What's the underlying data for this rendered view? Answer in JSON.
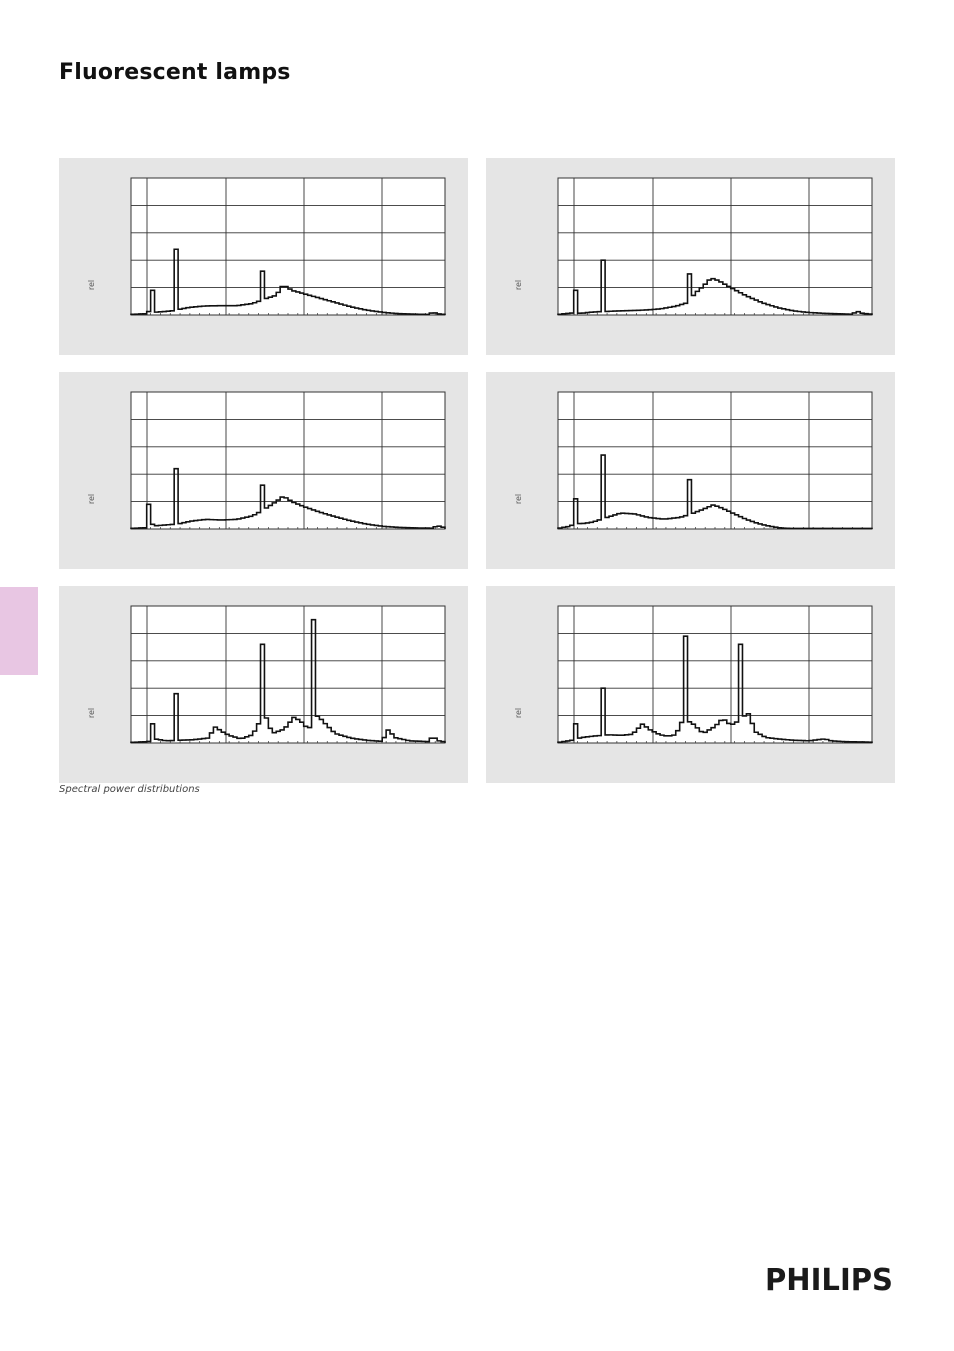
{
  "page": {
    "title": "Fluorescent lamps",
    "caption": "Spectral power distributions",
    "logo_text": "PHILIPS",
    "tab_color": "#e8c6e3",
    "panel_color": "#e5e5e5"
  },
  "chart_data": [
    {
      "type": "line",
      "title": "",
      "xlabel": "",
      "ylabel": "rel",
      "xlim": [
        380,
        780
      ],
      "ylim": [
        0,
        5
      ],
      "grid": true,
      "spikes": [
        [
          405,
          0.9
        ],
        [
          436,
          2.4
        ],
        [
          546,
          1.6
        ]
      ],
      "envelope": [
        [
          380,
          0.02
        ],
        [
          401,
          0.05
        ],
        [
          404,
          0.2
        ],
        [
          410,
          0.1
        ],
        [
          420,
          0.12
        ],
        [
          432,
          0.15
        ],
        [
          440,
          0.2
        ],
        [
          455,
          0.28
        ],
        [
          475,
          0.33
        ],
        [
          495,
          0.34
        ],
        [
          515,
          0.34
        ],
        [
          535,
          0.42
        ],
        [
          550,
          0.58
        ],
        [
          565,
          0.72
        ],
        [
          574,
          1.1
        ],
        [
          585,
          0.9
        ],
        [
          600,
          0.78
        ],
        [
          620,
          0.62
        ],
        [
          640,
          0.46
        ],
        [
          660,
          0.3
        ],
        [
          680,
          0.18
        ],
        [
          700,
          0.1
        ],
        [
          720,
          0.05
        ],
        [
          740,
          0.03
        ],
        [
          760,
          0.02
        ],
        [
          764,
          0.1
        ],
        [
          772,
          0.04
        ],
        [
          780,
          0.02
        ]
      ]
    },
    {
      "type": "line",
      "title": "",
      "xlabel": "",
      "ylabel": "rel",
      "xlim": [
        380,
        780
      ],
      "ylim": [
        0,
        5
      ],
      "grid": true,
      "spikes": [
        [
          404,
          0.9
        ],
        [
          436,
          2.0
        ],
        [
          546,
          1.5
        ]
      ],
      "envelope": [
        [
          380,
          0.02
        ],
        [
          400,
          0.08
        ],
        [
          410,
          0.06
        ],
        [
          420,
          0.1
        ],
        [
          432,
          0.12
        ],
        [
          450,
          0.14
        ],
        [
          470,
          0.16
        ],
        [
          490,
          0.18
        ],
        [
          510,
          0.22
        ],
        [
          530,
          0.32
        ],
        [
          545,
          0.45
        ],
        [
          555,
          0.8
        ],
        [
          565,
          1.05
        ],
        [
          575,
          1.35
        ],
        [
          585,
          1.25
        ],
        [
          600,
          1.0
        ],
        [
          620,
          0.7
        ],
        [
          640,
          0.45
        ],
        [
          660,
          0.27
        ],
        [
          680,
          0.15
        ],
        [
          700,
          0.09
        ],
        [
          720,
          0.06
        ],
        [
          740,
          0.04
        ],
        [
          756,
          0.03
        ],
        [
          760,
          0.15
        ],
        [
          768,
          0.06
        ],
        [
          780,
          0.03
        ]
      ]
    },
    {
      "type": "line",
      "title": "",
      "xlabel": "",
      "ylabel": "rel",
      "xlim": [
        380,
        780
      ],
      "ylim": [
        0,
        5
      ],
      "grid": true,
      "spikes": [
        [
          404,
          0.9
        ],
        [
          436,
          2.2
        ],
        [
          546,
          1.6
        ]
      ],
      "envelope": [
        [
          380,
          0.02
        ],
        [
          401,
          0.05
        ],
        [
          405,
          0.2
        ],
        [
          412,
          0.12
        ],
        [
          425,
          0.15
        ],
        [
          440,
          0.18
        ],
        [
          455,
          0.28
        ],
        [
          475,
          0.35
        ],
        [
          495,
          0.33
        ],
        [
          515,
          0.35
        ],
        [
          535,
          0.48
        ],
        [
          550,
          0.72
        ],
        [
          565,
          1.0
        ],
        [
          574,
          1.2
        ],
        [
          585,
          1.0
        ],
        [
          600,
          0.82
        ],
        [
          620,
          0.62
        ],
        [
          640,
          0.45
        ],
        [
          660,
          0.3
        ],
        [
          680,
          0.18
        ],
        [
          700,
          0.1
        ],
        [
          720,
          0.06
        ],
        [
          740,
          0.04
        ],
        [
          764,
          0.03
        ],
        [
          770,
          0.12
        ],
        [
          780,
          0.05
        ]
      ]
    },
    {
      "type": "line",
      "title": "",
      "xlabel": "",
      "ylabel": "rel",
      "xlim": [
        380,
        780
      ],
      "ylim": [
        0,
        5
      ],
      "grid": true,
      "spikes": [
        [
          404,
          1.1
        ],
        [
          436,
          2.7
        ],
        [
          546,
          1.8
        ]
      ],
      "envelope": [
        [
          380,
          0.02
        ],
        [
          395,
          0.1
        ],
        [
          402,
          0.2
        ],
        [
          412,
          0.2
        ],
        [
          424,
          0.25
        ],
        [
          440,
          0.4
        ],
        [
          460,
          0.58
        ],
        [
          478,
          0.55
        ],
        [
          495,
          0.42
        ],
        [
          515,
          0.36
        ],
        [
          535,
          0.42
        ],
        [
          550,
          0.55
        ],
        [
          565,
          0.72
        ],
        [
          578,
          0.88
        ],
        [
          590,
          0.75
        ],
        [
          605,
          0.55
        ],
        [
          620,
          0.35
        ],
        [
          635,
          0.2
        ],
        [
          650,
          0.1
        ],
        [
          665,
          0.03
        ],
        [
          680,
          0.02
        ],
        [
          760,
          0.02
        ],
        [
          780,
          0.02
        ]
      ]
    },
    {
      "type": "line",
      "title": "",
      "xlabel": "",
      "ylabel": "rel",
      "xlim": [
        380,
        780
      ],
      "ylim": [
        0,
        5
      ],
      "grid": true,
      "spikes": [
        [
          405,
          0.7
        ],
        [
          436,
          1.8
        ],
        [
          546,
          3.6
        ],
        [
          611,
          4.5
        ]
      ],
      "envelope": [
        [
          380,
          0.02
        ],
        [
          402,
          0.05
        ],
        [
          410,
          0.15
        ],
        [
          425,
          0.08
        ],
        [
          440,
          0.1
        ],
        [
          460,
          0.12
        ],
        [
          478,
          0.18
        ],
        [
          488,
          0.6
        ],
        [
          494,
          0.45
        ],
        [
          505,
          0.28
        ],
        [
          520,
          0.15
        ],
        [
          535,
          0.3
        ],
        [
          550,
          1.1
        ],
        [
          560,
          0.35
        ],
        [
          575,
          0.5
        ],
        [
          588,
          0.95
        ],
        [
          598,
          0.75
        ],
        [
          606,
          0.5
        ],
        [
          618,
          1.0
        ],
        [
          626,
          0.75
        ],
        [
          640,
          0.35
        ],
        [
          660,
          0.18
        ],
        [
          680,
          0.1
        ],
        [
          700,
          0.06
        ],
        [
          708,
          0.5
        ],
        [
          716,
          0.2
        ],
        [
          735,
          0.08
        ],
        [
          760,
          0.05
        ],
        [
          764,
          0.25
        ],
        [
          772,
          0.08
        ],
        [
          780,
          0.04
        ]
      ]
    },
    {
      "type": "line",
      "title": "",
      "xlabel": "",
      "ylabel": "rel",
      "xlim": [
        380,
        780
      ],
      "ylim": [
        0,
        5
      ],
      "grid": true,
      "spikes": [
        [
          402,
          0.7
        ],
        [
          436,
          2.0
        ],
        [
          543,
          3.9
        ],
        [
          611,
          3.6
        ]
      ],
      "envelope": [
        [
          380,
          0.02
        ],
        [
          398,
          0.1
        ],
        [
          410,
          0.2
        ],
        [
          425,
          0.25
        ],
        [
          445,
          0.3
        ],
        [
          460,
          0.28
        ],
        [
          475,
          0.32
        ],
        [
          488,
          0.7
        ],
        [
          496,
          0.5
        ],
        [
          510,
          0.3
        ],
        [
          520,
          0.25
        ],
        [
          530,
          0.3
        ],
        [
          540,
          0.9
        ],
        [
          552,
          0.7
        ],
        [
          565,
          0.35
        ],
        [
          580,
          0.6
        ],
        [
          590,
          0.9
        ],
        [
          600,
          0.65
        ],
        [
          610,
          0.8
        ],
        [
          622,
          1.1
        ],
        [
          632,
          0.4
        ],
        [
          645,
          0.2
        ],
        [
          660,
          0.15
        ],
        [
          680,
          0.1
        ],
        [
          700,
          0.08
        ],
        [
          720,
          0.15
        ],
        [
          728,
          0.08
        ],
        [
          745,
          0.05
        ],
        [
          780,
          0.03
        ]
      ]
    }
  ]
}
